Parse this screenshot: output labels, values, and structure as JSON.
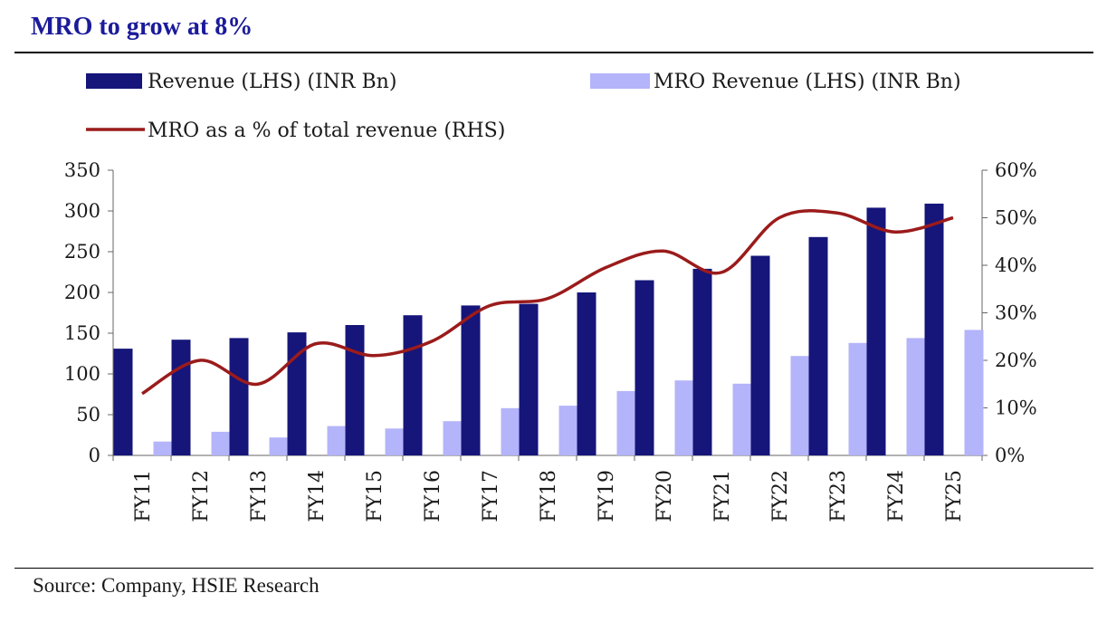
{
  "title": "MRO to grow at 8%",
  "source": "Source: Company, HSIE Research",
  "colors": {
    "revenue": "#15157a",
    "mro_revenue": "#b4b4fa",
    "mro_pct": "#9b1b1b",
    "title": "#1b1b9a"
  },
  "chart_data": {
    "type": "bar",
    "categories": [
      "FY11",
      "FY12",
      "FY13",
      "FY14",
      "FY15",
      "FY16",
      "FY17",
      "FY18",
      "FY19",
      "FY20",
      "FY21",
      "FY22",
      "FY23",
      "FY24",
      "FY25"
    ],
    "series": [
      {
        "name": "Revenue (LHS) (INR Bn)",
        "type": "bar",
        "axis": "left",
        "values": [
          131,
          142,
          144,
          151,
          160,
          172,
          184,
          186,
          200,
          215,
          229,
          245,
          268,
          304,
          309
        ]
      },
      {
        "name": "MRO Revenue (LHS) (INR Bn)",
        "type": "bar",
        "axis": "left",
        "values": [
          17,
          29,
          22,
          36,
          33,
          42,
          58,
          61,
          79,
          92,
          88,
          122,
          138,
          144,
          154
        ]
      },
      {
        "name": "MRO as a % of total revenue (RHS)",
        "type": "line",
        "axis": "right",
        "values": [
          13,
          20,
          15,
          23.5,
          21,
          24,
          31.5,
          33,
          39.5,
          43,
          38.5,
          50,
          51,
          47,
          50
        ]
      }
    ],
    "y_left": {
      "range": [
        0,
        350
      ],
      "ticks": [
        0,
        50,
        100,
        150,
        200,
        250,
        300,
        350
      ]
    },
    "y_right": {
      "range": [
        0,
        60
      ],
      "ticks": [
        0,
        10,
        20,
        30,
        40,
        50,
        60
      ],
      "tick_labels": [
        "0%",
        "10%",
        "20%",
        "30%",
        "40%",
        "50%",
        "60%"
      ]
    },
    "legend_position": "top",
    "grid": false
  }
}
